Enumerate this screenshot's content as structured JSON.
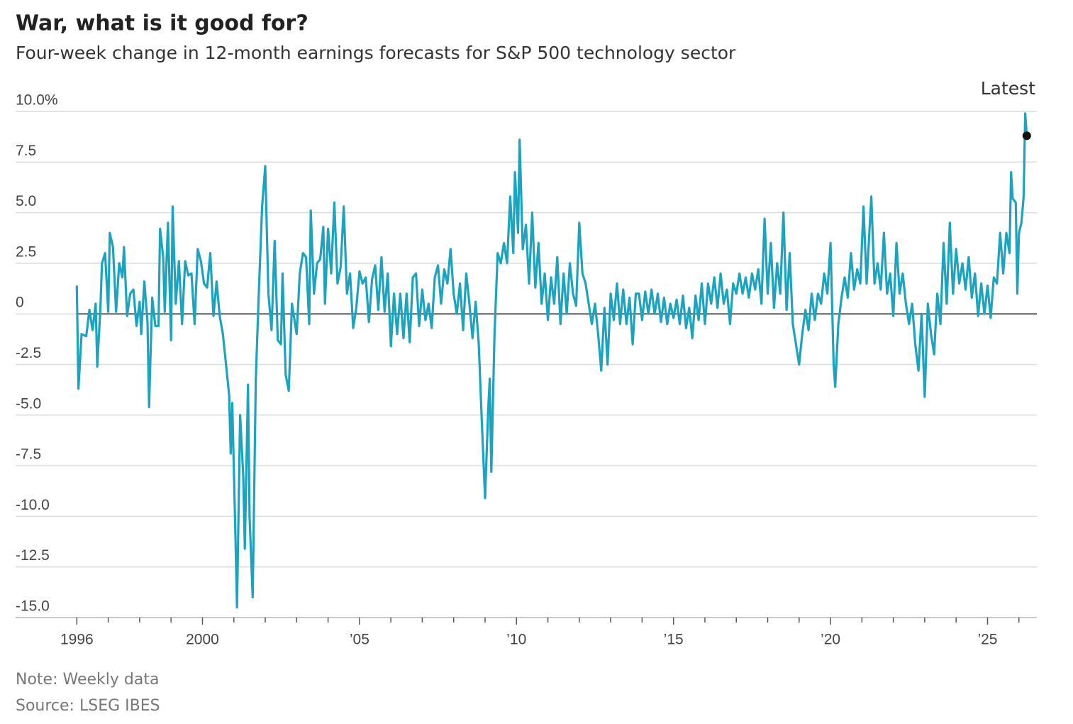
{
  "chart_data": {
    "type": "line",
    "title": "War, what is it good for?",
    "subtitle": "Four-week change in 12-month earnings forecasts for S&P 500 technology sector",
    "annotation": "Latest",
    "note": "Note: Weekly data",
    "source": "Source: LSEG IBES",
    "color": "#1ba3c0",
    "zero_line": true,
    "grid": true,
    "xlim": [
      1994.05,
      2026.57
    ],
    "ylim": [
      -15,
      10
    ],
    "yticks": [
      {
        "value": 10,
        "label": "10.0%"
      },
      7.5,
      {
        "value": 5,
        "label": "5.0"
      },
      2.5,
      0,
      -2.5,
      {
        "value": -5,
        "label": "-5.0"
      },
      -7.5,
      {
        "value": -10,
        "label": "-10.0"
      },
      -12.5,
      {
        "value": -15,
        "label": "-15.0"
      }
    ],
    "xticks": [
      1996,
      2000,
      {
        "value": 2005,
        "label": "’05"
      },
      {
        "value": 2010,
        "label": "’10"
      },
      {
        "value": 2015,
        "label": "’15"
      },
      {
        "value": 2020,
        "label": "’20"
      },
      {
        "value": 2025,
        "label": "’25"
      }
    ],
    "xminorticks": [
      1997,
      1998,
      1999,
      2001,
      2002,
      2003,
      2004,
      2006,
      2007,
      2008,
      2009,
      2011,
      2012,
      2013,
      2014,
      2016,
      2017,
      2018,
      2019,
      2021,
      2022,
      2023,
      2024,
      2026
    ],
    "x": [
      1996.0,
      1996.05,
      1996.15,
      1996.3,
      1996.4,
      1996.5,
      1996.6,
      1996.65,
      1996.75,
      1996.8,
      1996.9,
      1997.0,
      1997.05,
      1997.15,
      1997.25,
      1997.35,
      1997.45,
      1997.5,
      1997.6,
      1997.7,
      1997.8,
      1997.9,
      1998.0,
      1998.05,
      1998.15,
      1998.25,
      1998.3,
      1998.4,
      1998.5,
      1998.6,
      1998.65,
      1998.75,
      1998.8,
      1998.9,
      1999.0,
      1999.05,
      1999.15,
      1999.25,
      1999.35,
      1999.45,
      1999.55,
      1999.65,
      1999.75,
      1999.85,
      1999.95,
      2000.05,
      2000.15,
      2000.25,
      2000.35,
      2000.45,
      2000.55,
      2000.65,
      2000.75,
      2000.85,
      2000.9,
      2000.95,
      2001.05,
      2001.1,
      2001.2,
      2001.3,
      2001.35,
      2001.45,
      2001.5,
      2001.6,
      2001.7,
      2001.8,
      2001.9,
      2002.0,
      2002.1,
      2002.2,
      2002.3,
      2002.4,
      2002.5,
      2002.55,
      2002.65,
      2002.75,
      2002.85,
      2003.0,
      2003.1,
      2003.2,
      2003.3,
      2003.4,
      2003.45,
      2003.55,
      2003.65,
      2003.75,
      2003.85,
      2003.9,
      2004.0,
      2004.1,
      2004.2,
      2004.3,
      2004.4,
      2004.5,
      2004.6,
      2004.7,
      2004.8,
      2004.9,
      2005.0,
      2005.1,
      2005.2,
      2005.3,
      2005.4,
      2005.5,
      2005.6,
      2005.7,
      2005.8,
      2005.9,
      2006.0,
      2006.1,
      2006.2,
      2006.3,
      2006.4,
      2006.5,
      2006.6,
      2006.7,
      2006.8,
      2006.9,
      2007.0,
      2007.1,
      2007.2,
      2007.3,
      2007.4,
      2007.5,
      2007.6,
      2007.7,
      2007.8,
      2007.9,
      2008.0,
      2008.1,
      2008.2,
      2008.3,
      2008.4,
      2008.5,
      2008.6,
      2008.7,
      2008.8,
      2008.9,
      2009.0,
      2009.1,
      2009.15,
      2009.2,
      2009.3,
      2009.4,
      2009.5,
      2009.6,
      2009.7,
      2009.8,
      2009.9,
      2009.95,
      2010.05,
      2010.1,
      2010.2,
      2010.3,
      2010.4,
      2010.5,
      2010.6,
      2010.7,
      2010.8,
      2010.9,
      2011.0,
      2011.1,
      2011.2,
      2011.3,
      2011.4,
      2011.5,
      2011.6,
      2011.7,
      2011.8,
      2011.9,
      2012.0,
      2012.1,
      2012.2,
      2012.3,
      2012.4,
      2012.5,
      2012.6,
      2012.7,
      2012.8,
      2012.9,
      2013.0,
      2013.1,
      2013.2,
      2013.3,
      2013.4,
      2013.5,
      2013.6,
      2013.7,
      2013.8,
      2013.9,
      2014.0,
      2014.1,
      2014.2,
      2014.3,
      2014.4,
      2014.5,
      2014.6,
      2014.7,
      2014.8,
      2014.9,
      2015.0,
      2015.1,
      2015.2,
      2015.3,
      2015.4,
      2015.5,
      2015.6,
      2015.7,
      2015.8,
      2015.9,
      2016.0,
      2016.1,
      2016.2,
      2016.3,
      2016.4,
      2016.5,
      2016.6,
      2016.7,
      2016.8,
      2016.9,
      2017.0,
      2017.1,
      2017.2,
      2017.3,
      2017.4,
      2017.5,
      2017.6,
      2017.7,
      2017.8,
      2017.9,
      2018.0,
      2018.1,
      2018.2,
      2018.3,
      2018.4,
      2018.5,
      2018.6,
      2018.7,
      2018.8,
      2018.9,
      2019.0,
      2019.1,
      2019.2,
      2019.3,
      2019.4,
      2019.5,
      2019.6,
      2019.7,
      2019.8,
      2019.9,
      2020.0,
      2020.1,
      2020.15,
      2020.25,
      2020.35,
      2020.45,
      2020.55,
      2020.65,
      2020.75,
      2020.85,
      2020.95,
      2021.05,
      2021.15,
      2021.3,
      2021.4,
      2021.5,
      2021.6,
      2021.7,
      2021.8,
      2021.9,
      2022.0,
      2022.1,
      2022.2,
      2022.3,
      2022.4,
      2022.5,
      2022.6,
      2022.7,
      2022.8,
      2022.9,
      2023.0,
      2023.1,
      2023.2,
      2023.3,
      2023.4,
      2023.5,
      2023.6,
      2023.7,
      2023.8,
      2023.9,
      2024.0,
      2024.1,
      2024.2,
      2024.3,
      2024.4,
      2024.5,
      2024.6,
      2024.7,
      2024.8,
      2024.9,
      2025.0,
      2025.1,
      2025.2,
      2025.3,
      2025.4,
      2025.5,
      2025.6,
      2025.7,
      2025.75,
      2025.8,
      2025.9,
      2025.95,
      2026.0,
      2026.08,
      2026.15,
      2026.2,
      2026.25
    ],
    "values": [
      1.4,
      -3.7,
      -1.0,
      -1.1,
      0.2,
      -0.8,
      0.5,
      -2.6,
      0.3,
      2.5,
      3.0,
      0.1,
      4.0,
      3.3,
      0.1,
      2.5,
      1.8,
      3.3,
      -0.1,
      1.0,
      1.2,
      -0.6,
      0.6,
      -1.0,
      1.6,
      -0.4,
      -4.6,
      0.8,
      -0.6,
      -0.6,
      4.2,
      2.8,
      0.1,
      4.5,
      -1.3,
      5.3,
      0.5,
      2.6,
      -0.5,
      2.6,
      1.9,
      2.0,
      -0.5,
      3.2,
      2.6,
      1.5,
      1.3,
      3.0,
      -0.1,
      1.6,
      -0.1,
      -1.0,
      -2.5,
      -4.0,
      -6.9,
      -4.4,
      -11.0,
      -14.5,
      -5.0,
      -8.0,
      -11.6,
      -3.5,
      -10.0,
      -14.0,
      -3.2,
      1.3,
      5.3,
      7.3,
      1.0,
      -0.8,
      3.6,
      -1.3,
      -1.5,
      2.0,
      -3.0,
      -3.8,
      0.5,
      -1.0,
      2.0,
      3.0,
      2.8,
      -0.5,
      5.1,
      1.0,
      2.5,
      2.7,
      4.3,
      0.5,
      4.2,
      2.0,
      5.5,
      1.5,
      2.3,
      5.3,
      1.0,
      2.0,
      -0.7,
      0.3,
      2.1,
      1.5,
      1.8,
      -0.4,
      1.7,
      2.4,
      0.2,
      2.8,
      0.1,
      2.0,
      -1.6,
      1.0,
      -1.0,
      1.0,
      -1.2,
      1.0,
      -1.4,
      1.8,
      2.0,
      -0.6,
      1.2,
      -0.3,
      0.5,
      -0.7,
      1.8,
      2.4,
      0.5,
      2.2,
      1.5,
      3.2,
      1.0,
      0.0,
      1.5,
      -0.8,
      2.0,
      0.5,
      -1.2,
      0.6,
      -1.5,
      -5.5,
      -9.1,
      -4.7,
      -3.2,
      -7.8,
      -1.0,
      3.0,
      2.5,
      3.5,
      2.5,
      5.8,
      3.0,
      7.0,
      4.0,
      8.6,
      3.2,
      4.4,
      1.5,
      5.0,
      1.3,
      3.5,
      0.5,
      2.0,
      -0.3,
      1.8,
      0.5,
      2.8,
      -0.5,
      2.0,
      0.0,
      2.5,
      1.0,
      0.4,
      4.5,
      2.0,
      1.5,
      0.5,
      -0.5,
      0.5,
      -1.0,
      -2.8,
      0.3,
      -2.5,
      1.0,
      -0.3,
      1.5,
      -0.5,
      1.2,
      -0.5,
      0.8,
      -1.5,
      1.0,
      1.0,
      -0.3,
      1.1,
      0.0,
      1.2,
      0.0,
      1.0,
      -0.4,
      0.8,
      -0.5,
      0.5,
      -0.2,
      0.7,
      -0.5,
      0.9,
      -0.7,
      0.3,
      -1.2,
      0.9,
      -0.3,
      1.5,
      -0.5,
      1.5,
      0.5,
      1.8,
      0.3,
      2.0,
      0.5,
      1.2,
      -0.5,
      1.5,
      1.0,
      2.0,
      1.0,
      1.8,
      0.8,
      2.0,
      1.2,
      2.2,
      0.5,
      4.7,
      1.0,
      3.5,
      0.3,
      2.5,
      1.0,
      5.0,
      0.2,
      3.0,
      -0.5,
      -1.5,
      -2.5,
      -1.0,
      0.2,
      -0.8,
      1.0,
      -0.3,
      1.0,
      0.5,
      2.0,
      1.0,
      3.5,
      -2.5,
      -3.6,
      -0.5,
      0.8,
      1.8,
      0.8,
      3.0,
      1.2,
      2.2,
      1.5,
      5.3,
      1.5,
      5.8,
      1.5,
      2.5,
      1.2,
      4.0,
      1.0,
      2.0,
      -0.1,
      3.5,
      1.0,
      2.0,
      0.5,
      -0.5,
      0.5,
      -1.5,
      -2.8,
      0.0,
      -4.1,
      0.5,
      -1.0,
      -2.0,
      1.0,
      -0.5,
      3.5,
      0.5,
      4.5,
      1.0,
      3.2,
      1.5,
      2.5,
      1.2,
      2.8,
      0.8,
      2.0,
      -0.1,
      1.5,
      0.0,
      1.4,
      -0.2,
      1.8,
      1.5,
      4.0,
      2.0,
      4.0,
      3.0,
      7.0,
      5.7,
      5.5,
      1.0,
      4.0,
      4.5,
      5.8,
      9.9,
      8.8
    ]
  }
}
